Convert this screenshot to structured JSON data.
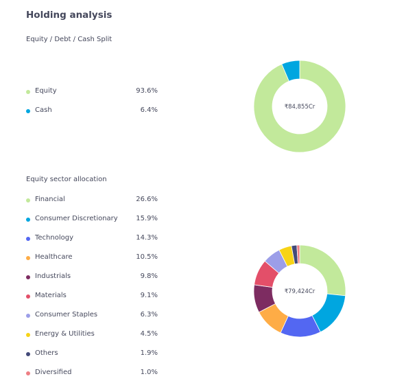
{
  "header": {
    "title": "Holding analysis"
  },
  "chart_data": [
    {
      "type": "pie",
      "title": "Equity / Debt / Cash Split",
      "center_label": "₹84,855Cr",
      "categories": [
        "Equity",
        "Cash"
      ],
      "values": [
        93.6,
        6.4
      ],
      "value_labels": [
        "93.6%",
        "6.4%"
      ],
      "colors": [
        "#c2e99b",
        "#00a6e0"
      ]
    },
    {
      "type": "pie",
      "title": "Equity sector allocation",
      "center_label": "₹79,424Cr",
      "categories": [
        "Financial",
        "Consumer Discretionary",
        "Technology",
        "Healthcare",
        "Industrials",
        "Materials",
        "Consumer Staples",
        "Energy & Utilities",
        "Others",
        "Diversified"
      ],
      "values": [
        26.6,
        15.9,
        14.3,
        10.5,
        9.8,
        9.1,
        6.3,
        4.5,
        1.9,
        1.0
      ],
      "value_labels": [
        "26.6%",
        "15.9%",
        "14.3%",
        "10.5%",
        "9.8%",
        "9.1%",
        "6.3%",
        "4.5%",
        "1.9%",
        "1.0%"
      ],
      "colors": [
        "#c2e99b",
        "#00a6e0",
        "#5367f2",
        "#feac46",
        "#7d2c61",
        "#e34f69",
        "#9c9ee8",
        "#f7d316",
        "#434a79",
        "#ee7f84"
      ]
    }
  ]
}
